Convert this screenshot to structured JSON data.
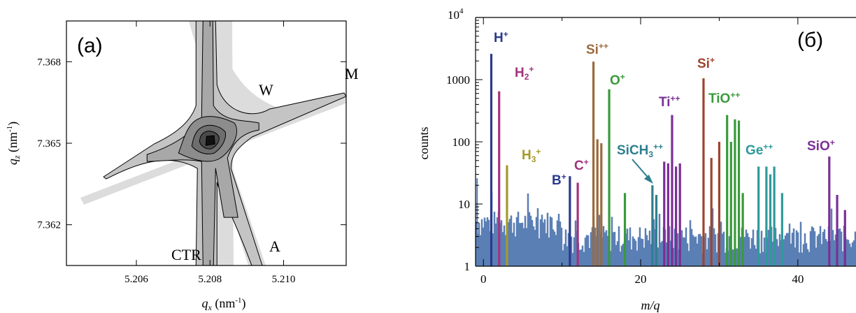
{
  "panel_a": {
    "label": "(a)",
    "xlabel_main": "q",
    "xlabel_sub": "x",
    "xlabel_unit": " (nm",
    "xlabel_exp": "-1",
    "xlabel_close": ")",
    "ylabel_main": "q",
    "ylabel_sub": "z",
    "ylabel_unit": " (nm",
    "ylabel_exp": "-1",
    "ylabel_close": ")",
    "annotations": {
      "W": "W",
      "M": "M",
      "A": "A",
      "CTR": "CTR"
    }
  },
  "panel_b": {
    "label": "(б)",
    "exponent_base": "10",
    "exponent_power": "4",
    "peak_labels": [
      {
        "base": "H",
        "sup": "+",
        "color": "#2a3a8c"
      },
      {
        "base": "H",
        "sub": "2",
        "sup": "+",
        "color": "#a2337e"
      },
      {
        "base": "H",
        "sub": "3",
        "sup": "+",
        "color": "#a69a2a"
      },
      {
        "base": "B",
        "sup": "+",
        "color": "#2a3a8c"
      },
      {
        "base": "C",
        "sup": "+",
        "color": "#a2337e"
      },
      {
        "base": "Si",
        "sup": "++",
        "color": "#9c6a3c"
      },
      {
        "base": "O",
        "sup": "+",
        "color": "#3a9a3a"
      },
      {
        "base": "SiCH",
        "sub": "3",
        "sup": "++",
        "color": "#2e7f8e"
      },
      {
        "base": "Ti",
        "sup": "++",
        "color": "#7a2f96"
      },
      {
        "base": "Si",
        "sup": "+",
        "color": "#a0442e"
      },
      {
        "base": "TiO",
        "sup": "++",
        "color": "#3a9a3a"
      },
      {
        "base": "Ge",
        "sup": "++",
        "color": "#2e9a9a"
      },
      {
        "base": "SiO",
        "sup": "+",
        "color": "#7a2f96"
      }
    ]
  },
  "chart_data": [
    {
      "type": "contour",
      "title": "",
      "xlabel": "qx (nm-1)",
      "ylabel": "qz (nm-1)",
      "xlim": [
        5.2041,
        5.2117
      ],
      "ylim": [
        7.3605,
        7.3695
      ],
      "xticks": [
        5.206,
        5.208,
        5.21
      ],
      "xtick_labels": [
        "5.206",
        "5.208",
        "5.210"
      ],
      "yticks": [
        7.362,
        7.365,
        7.368
      ],
      "ytick_labels": [
        "7.362",
        "7.365",
        "7.368"
      ],
      "peak_center": {
        "qx": 5.208,
        "qz": 7.3651
      },
      "contour_levels": 6,
      "streaks": [
        {
          "name": "CTR",
          "direction": "vertical",
          "qx": 5.208
        },
        {
          "name": "A",
          "direction": "analyzer"
        },
        {
          "name": "M",
          "direction": "monochromator"
        },
        {
          "name": "W",
          "direction": "wavelength"
        }
      ],
      "colors": {
        "shading": "#dcdcdc",
        "levels": [
          "#c4c4c4",
          "#a8a8a8",
          "#8c8c8c",
          "#6e6e6e",
          "#4a4a4a",
          "#111111"
        ]
      }
    },
    {
      "type": "bar",
      "subtype": "mass-spectrum",
      "title": "",
      "xlabel": "m/q",
      "ylabel": "counts",
      "yscale": "log",
      "xlim": [
        -1,
        49
      ],
      "ylim": [
        1,
        10000
      ],
      "xticks": [
        0,
        20,
        40
      ],
      "xtick_labels": [
        "0",
        "20",
        "40"
      ],
      "yticks": [
        1,
        10,
        100,
        1000,
        10000
      ],
      "ytick_labels": [
        "1",
        "10",
        "100",
        "1000",
        ""
      ],
      "background_color": "#5a7fb5",
      "peaks": [
        {
          "label": "H+",
          "mq": 1.0,
          "counts": 2600,
          "color": "#2a3a8c"
        },
        {
          "label": "H2+",
          "mq": 2.0,
          "counts": 650,
          "color": "#a2337e"
        },
        {
          "label": "H3+",
          "mq": 3.0,
          "counts": 42,
          "color": "#a69a2a"
        },
        {
          "label": "B+",
          "mq": 11.0,
          "counts": 28,
          "color": "#2a3a8c"
        },
        {
          "label": "C+",
          "mq": 12.0,
          "counts": 22,
          "color": "#a2337e"
        },
        {
          "label": "Si++",
          "mq": 14.0,
          "counts": 1950,
          "color": "#9c6a3c"
        },
        {
          "label": "Si++",
          "mq": 14.5,
          "counts": 110,
          "color": "#9c6a3c"
        },
        {
          "label": "Si++",
          "mq": 15.0,
          "counts": 95,
          "color": "#9c6a3c"
        },
        {
          "label": "O+",
          "mq": 16.0,
          "counts": 700,
          "color": "#3a9a3a"
        },
        {
          "label": "",
          "mq": 18.0,
          "counts": 15,
          "color": "#3a9a3a"
        },
        {
          "label": "SiCH3++",
          "mq": 21.5,
          "counts": 20,
          "color": "#2e7f8e"
        },
        {
          "label": "",
          "mq": 22.0,
          "counts": 14,
          "color": "#2e7f8e"
        },
        {
          "label": "Ti++",
          "mq": 23.0,
          "counts": 48,
          "color": "#7a2f96"
        },
        {
          "label": "Ti++",
          "mq": 23.5,
          "counts": 45,
          "color": "#7a2f96"
        },
        {
          "label": "Ti++",
          "mq": 24.0,
          "counts": 270,
          "color": "#7a2f96"
        },
        {
          "label": "Ti++",
          "mq": 24.5,
          "counts": 40,
          "color": "#7a2f96"
        },
        {
          "label": "Ti++",
          "mq": 25.0,
          "counts": 45,
          "color": "#7a2f96"
        },
        {
          "label": "Si+",
          "mq": 28.0,
          "counts": 1050,
          "color": "#a0442e"
        },
        {
          "label": "Si+",
          "mq": 29.0,
          "counts": 55,
          "color": "#a0442e"
        },
        {
          "label": "Si+",
          "mq": 30.0,
          "counts": 100,
          "color": "#a0442e"
        },
        {
          "label": "TiO++",
          "mq": 31.0,
          "counts": 270,
          "color": "#3a9a3a"
        },
        {
          "label": "TiO++",
          "mq": 31.5,
          "counts": 100,
          "color": "#3a9a3a"
        },
        {
          "label": "TiO++",
          "mq": 32.0,
          "counts": 230,
          "color": "#3a9a3a"
        },
        {
          "label": "TiO++",
          "mq": 32.5,
          "counts": 220,
          "color": "#3a9a3a"
        },
        {
          "label": "TiO++",
          "mq": 33.0,
          "counts": 15,
          "color": "#3a9a3a"
        },
        {
          "label": "Ge++",
          "mq": 35.0,
          "counts": 40,
          "color": "#2e9a9a"
        },
        {
          "label": "Ge++",
          "mq": 36.0,
          "counts": 40,
          "color": "#2e9a9a"
        },
        {
          "label": "Ge++",
          "mq": 36.5,
          "counts": 30,
          "color": "#2e9a9a"
        },
        {
          "label": "Ge++",
          "mq": 37.0,
          "counts": 40,
          "color": "#2e9a9a"
        },
        {
          "label": "Ge++",
          "mq": 38.0,
          "counts": 15,
          "color": "#2e9a9a"
        },
        {
          "label": "SiO+",
          "mq": 44.0,
          "counts": 58,
          "color": "#7a2f96"
        },
        {
          "label": "SiO+",
          "mq": 45.0,
          "counts": 14,
          "color": "#7a2f96"
        },
        {
          "label": "SiO+",
          "mq": 46.0,
          "counts": 8,
          "color": "#7a2f96"
        }
      ]
    }
  ]
}
